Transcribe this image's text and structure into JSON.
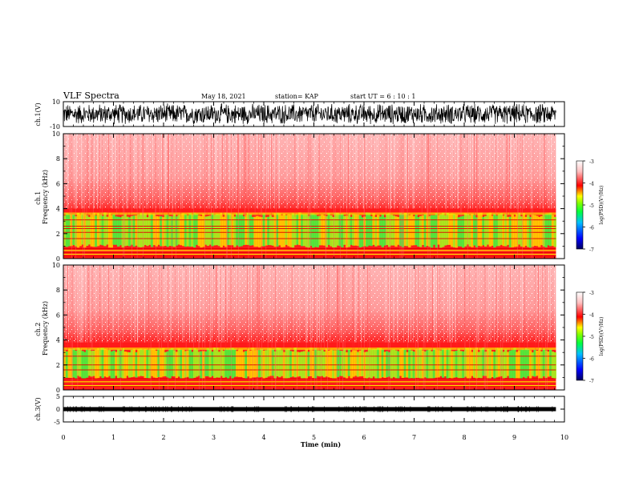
{
  "header": {
    "title": "VLF Spectra",
    "date": "May 18, 2021",
    "station": "station= KAP",
    "start": "start  UT  =   6  : 10 : 1"
  },
  "chart_data": {
    "type": "spectrogram",
    "xlabel": "Time  (min)",
    "xlim": [
      0,
      10
    ],
    "xticks": [
      "0",
      "1",
      "2",
      "3",
      "4",
      "5",
      "6",
      "7",
      "8",
      "9",
      "10"
    ],
    "data_end_min": 9.83,
    "panels": {
      "ch1_wave": {
        "ylabel": "ch.1(V)",
        "ylim": [
          -10,
          10
        ],
        "yticks": [
          "10",
          "-10"
        ],
        "amplitude_range": [
          -9,
          9
        ]
      },
      "ch1_spec": {
        "ylabel": "ch.1\nFrequency (kHz)",
        "ylim": [
          0,
          10
        ],
        "yticks": [
          "0",
          "2",
          "4",
          "6",
          "8",
          "10"
        ],
        "band_green_khz": [
          1.0,
          3.5
        ],
        "band_red_top_khz": 4.0,
        "lines_khz": [
          0.2,
          0.5,
          0.8,
          1.6,
          2.1,
          2.4,
          2.6,
          3.1
        ]
      },
      "ch2_spec": {
        "ylabel": "ch.2\nFrequency (kHz)",
        "ylim": [
          0,
          10
        ],
        "yticks": [
          "0",
          "2",
          "4",
          "6",
          "8",
          "10"
        ],
        "band_green_khz": [
          1.0,
          3.2
        ],
        "band_red_top_khz": 3.8,
        "lines_khz": [
          0.3,
          0.6,
          0.9,
          1.6,
          2.0,
          2.7
        ]
      },
      "ch3_wave": {
        "ylabel": "ch.3(V)",
        "ylim": [
          -5,
          5
        ],
        "yticks": [
          "5",
          "0",
          "-5"
        ],
        "level_range": [
          -0.8,
          0.8
        ]
      }
    },
    "colorbar": {
      "label": "log(PSD)(V²/Hz)",
      "ticks": [
        "-3",
        "-4",
        "-5",
        "-6",
        "-7"
      ],
      "range": [
        -7,
        -3
      ],
      "colors": [
        "#000060",
        "#0000ff",
        "#00c0ff",
        "#00ff40",
        "#80ff00",
        "#ffff00",
        "#ff0000",
        "#ffe0e0",
        "#ffffff"
      ]
    }
  }
}
